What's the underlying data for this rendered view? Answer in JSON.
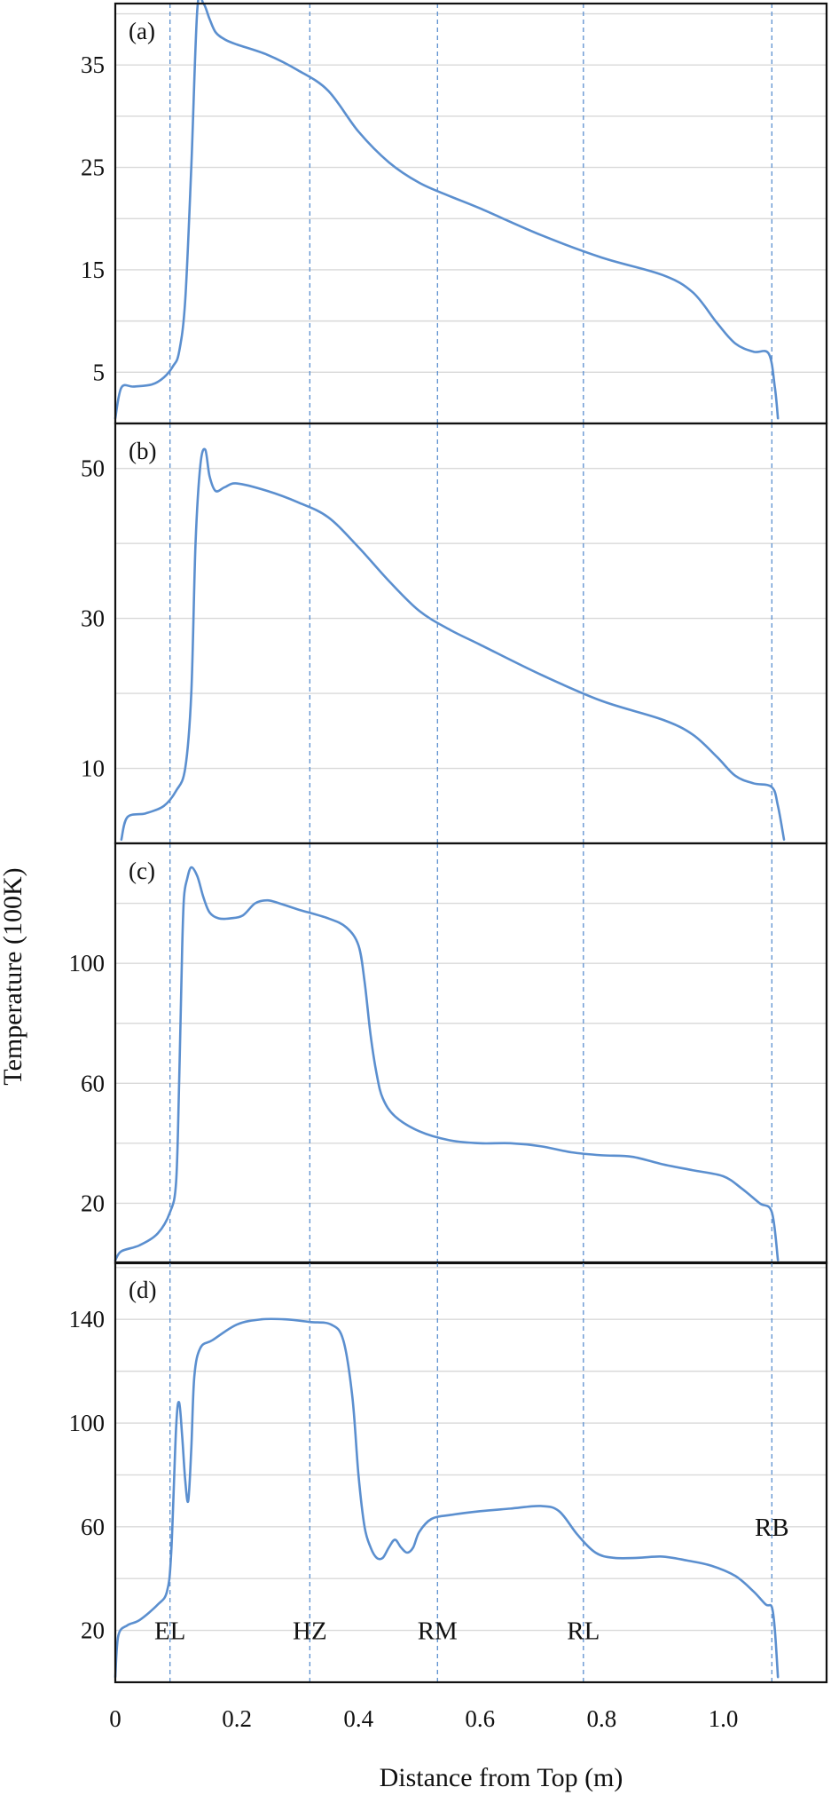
{
  "chart_data": [
    {
      "panel": "(a)",
      "type": "line",
      "ylim": [
        0,
        41
      ],
      "yticks": [
        5,
        15,
        25,
        35
      ],
      "grid": true,
      "x": [
        0.0,
        0.01,
        0.03,
        0.06,
        0.08,
        0.095,
        0.105,
        0.115,
        0.125,
        0.135,
        0.145,
        0.155,
        0.165,
        0.18,
        0.2,
        0.25,
        0.3,
        0.35,
        0.4,
        0.45,
        0.5,
        0.55,
        0.6,
        0.7,
        0.8,
        0.9,
        0.95,
        0.99,
        1.02,
        1.05,
        1.075,
        1.085,
        1.09
      ],
      "y": [
        0.5,
        3.5,
        3.6,
        3.8,
        4.5,
        5.6,
        7.0,
        12.0,
        25.0,
        40.5,
        41.0,
        39.5,
        38.2,
        37.5,
        37.0,
        36.0,
        34.5,
        32.5,
        28.5,
        25.5,
        23.5,
        22.2,
        21.0,
        18.4,
        16.2,
        14.5,
        12.8,
        9.8,
        7.8,
        7.0,
        6.8,
        3.5,
        0.5
      ]
    },
    {
      "panel": "(b)",
      "type": "line",
      "ylim": [
        0,
        56
      ],
      "yticks": [
        10,
        30,
        50
      ],
      "grid": true,
      "x": [
        0.01,
        0.02,
        0.05,
        0.08,
        0.1,
        0.115,
        0.125,
        0.132,
        0.14,
        0.148,
        0.155,
        0.165,
        0.18,
        0.2,
        0.25,
        0.3,
        0.35,
        0.4,
        0.45,
        0.5,
        0.55,
        0.6,
        0.7,
        0.8,
        0.9,
        0.95,
        0.99,
        1.02,
        1.05,
        1.08,
        1.09,
        1.1
      ],
      "y": [
        0.5,
        3.5,
        4.0,
        5.0,
        7.0,
        10.0,
        20.0,
        40.0,
        50.5,
        52.5,
        49.0,
        47.0,
        47.5,
        48.0,
        47.0,
        45.5,
        43.5,
        39.5,
        35.0,
        31.0,
        28.5,
        26.5,
        22.5,
        19.0,
        16.5,
        14.5,
        11.5,
        9.0,
        8.0,
        7.5,
        5.0,
        0.5
      ]
    },
    {
      "panel": "(c)",
      "type": "line",
      "ylim": [
        0,
        140
      ],
      "yticks": [
        20,
        60,
        100
      ],
      "grid": true,
      "x": [
        0.0,
        0.01,
        0.04,
        0.07,
        0.09,
        0.1,
        0.105,
        0.11,
        0.113,
        0.118,
        0.125,
        0.135,
        0.145,
        0.155,
        0.17,
        0.19,
        0.21,
        0.23,
        0.25,
        0.27,
        0.3,
        0.35,
        0.38,
        0.4,
        0.41,
        0.42,
        0.43,
        0.44,
        0.46,
        0.5,
        0.55,
        0.6,
        0.65,
        0.7,
        0.75,
        0.8,
        0.85,
        0.9,
        0.95,
        1.0,
        1.03,
        1.06,
        1.08,
        1.09
      ],
      "y": [
        1.0,
        4.0,
        6.0,
        10.0,
        17.0,
        27.0,
        60.0,
        105.0,
        122.0,
        128.0,
        132.0,
        129.0,
        122.0,
        117.0,
        115.0,
        115.0,
        116.0,
        120.0,
        121.0,
        120.0,
        118.0,
        115.0,
        112.0,
        106.0,
        94.0,
        76.0,
        63.0,
        55.0,
        49.0,
        44.0,
        41.0,
        40.0,
        40.0,
        39.0,
        37.0,
        36.0,
        35.5,
        33.0,
        31.0,
        29.0,
        25.0,
        20.0,
        17.0,
        1.0
      ]
    },
    {
      "panel": "(d)",
      "type": "line",
      "ylim": [
        0,
        162
      ],
      "yticks": [
        20,
        60,
        100,
        140
      ],
      "grid": true,
      "x": [
        0.0,
        0.005,
        0.02,
        0.04,
        0.07,
        0.085,
        0.092,
        0.1,
        0.105,
        0.11,
        0.115,
        0.12,
        0.125,
        0.13,
        0.14,
        0.16,
        0.2,
        0.24,
        0.28,
        0.32,
        0.355,
        0.375,
        0.39,
        0.4,
        0.41,
        0.42,
        0.43,
        0.44,
        0.45,
        0.46,
        0.47,
        0.48,
        0.49,
        0.5,
        0.52,
        0.55,
        0.6,
        0.65,
        0.7,
        0.73,
        0.76,
        0.79,
        0.82,
        0.86,
        0.9,
        0.94,
        0.98,
        1.02,
        1.05,
        1.07,
        1.08,
        1.085,
        1.09
      ],
      "y": [
        2.0,
        18.0,
        22.0,
        24.0,
        30.0,
        35.0,
        50.0,
        98.0,
        108.0,
        95.0,
        78.0,
        70.0,
        90.0,
        118.0,
        129.0,
        132.0,
        138.0,
        140.0,
        140.0,
        139.0,
        138.0,
        132.0,
        110.0,
        80.0,
        60.0,
        52.0,
        48.0,
        48.0,
        52.0,
        55.0,
        52.0,
        50.0,
        52.0,
        58.0,
        63.0,
        64.5,
        66.0,
        67.0,
        68.0,
        66.0,
        57.0,
        50.0,
        48.0,
        48.0,
        48.5,
        47.0,
        45.0,
        41.0,
        35.0,
        30.0,
        29.0,
        20.0,
        2.0
      ]
    }
  ],
  "shared": {
    "xlabel": "Distance from Top (m)",
    "ylabel": "Temperature (100K)",
    "xlim": [
      0,
      1.17
    ],
    "xticks": [
      0,
      0.2,
      0.4,
      0.6,
      0.8,
      1.0
    ],
    "xtick_labels": [
      "0",
      "0.2",
      "0.4",
      "0.6",
      "0.8",
      "1.0"
    ],
    "zone_lines_x": [
      0.09,
      0.32,
      0.53,
      0.77,
      1.08
    ],
    "zone_labels": [
      {
        "text": "EL",
        "x": 0.09,
        "y": 20
      },
      {
        "text": "HZ",
        "x": 0.32,
        "y": 20
      },
      {
        "text": "RM",
        "x": 0.53,
        "y": 20
      },
      {
        "text": "RL",
        "x": 0.77,
        "y": 20
      },
      {
        "text": "RB",
        "x": 1.08,
        "y": 60
      }
    ],
    "colors": {
      "line": "#5b8fcf",
      "grid": "#d9d9d9",
      "zone": "#5b8fcf",
      "frame": "#111111"
    }
  }
}
